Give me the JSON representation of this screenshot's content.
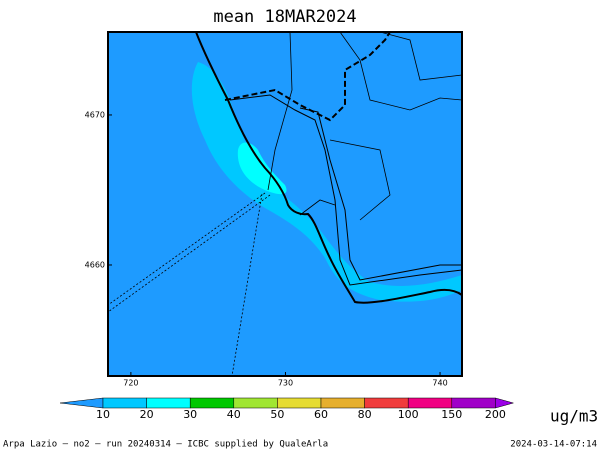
{
  "title": "mean 18MAR2024",
  "map": {
    "xlim": [
      718.52,
      741.42
    ],
    "ylim": [
      4652.6,
      4675.53
    ],
    "xticks": [
      720,
      730,
      740
    ],
    "yticks": [
      4660,
      4670
    ]
  },
  "colorbar": {
    "levels": [
      10,
      20,
      30,
      40,
      50,
      60,
      80,
      100,
      150,
      200
    ],
    "colors": [
      "#1e9bff",
      "#00c8ff",
      "#00ffff",
      "#00c800",
      "#a0e632",
      "#e6dc32",
      "#e6af2d",
      "#f03c3c",
      "#f00082",
      "#a000c8",
      "#9b00e6"
    ],
    "unit": "ug/m3"
  },
  "footer": {
    "left": "Arpa Lazio — no2 — run 20240314 — ICBC supplied by QualeArla",
    "right": "2024-03-14-07:14"
  }
}
